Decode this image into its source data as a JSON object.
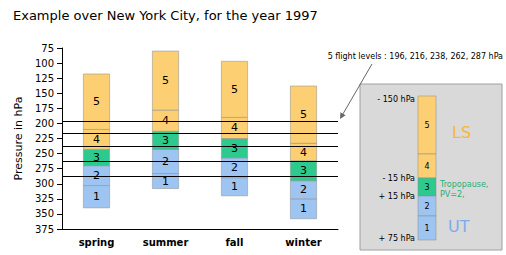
{
  "chart_data": {
    "type": "floating_stacked_bar",
    "title": "Example over New York City, for the year 1997",
    "y_label": "Pressure in hPa",
    "categories": [
      "spring",
      "summer",
      "fall",
      "winter"
    ],
    "series": [
      {
        "name": "1",
        "color": "#9ec5f2",
        "values": [
          [
            303,
            340
          ],
          [
            283,
            308
          ],
          [
            290,
            320
          ],
          [
            325,
            358
          ]
        ]
      },
      {
        "name": "2",
        "color": "#9ec5f2",
        "values": [
          [
            270,
            303
          ],
          [
            243,
            283
          ],
          [
            257,
            290
          ],
          [
            295,
            325
          ]
        ]
      },
      {
        "name": "3",
        "color": "#2ec98e",
        "values": [
          [
            243,
            270
          ],
          [
            213,
            243
          ],
          [
            225,
            257
          ],
          [
            262,
            295
          ]
        ]
      },
      {
        "name": "4",
        "color": "#fbcf72",
        "values": [
          [
            210,
            243
          ],
          [
            178,
            213
          ],
          [
            190,
            225
          ],
          [
            233,
            262
          ]
        ]
      },
      {
        "name": "5",
        "color": "#fbcf72",
        "values": [
          [
            118,
            210
          ],
          [
            80,
            178
          ],
          [
            97,
            190
          ],
          [
            138,
            233
          ]
        ]
      }
    ],
    "ylim": [
      375,
      75
    ],
    "yticks": [
      75,
      100,
      125,
      150,
      175,
      200,
      225,
      250,
      275,
      300,
      325,
      350,
      375
    ],
    "grid": false,
    "flight_levels": [
      196,
      216,
      238,
      262,
      287
    ],
    "annotation": "5 flight levels : 196, 216, 238, 262, 287 hPa"
  },
  "inset": {
    "column": [
      "5",
      "4",
      "3",
      "2",
      "1"
    ],
    "pressure_labels": [
      "- 150 hPa",
      "- 15 hPa",
      "+ 15 hPa",
      "+ 75 hPa"
    ],
    "upper_layer": "LS",
    "tropopause": [
      "Tropopause,",
      "PV=2,"
    ],
    "lower_layer": "UT"
  }
}
